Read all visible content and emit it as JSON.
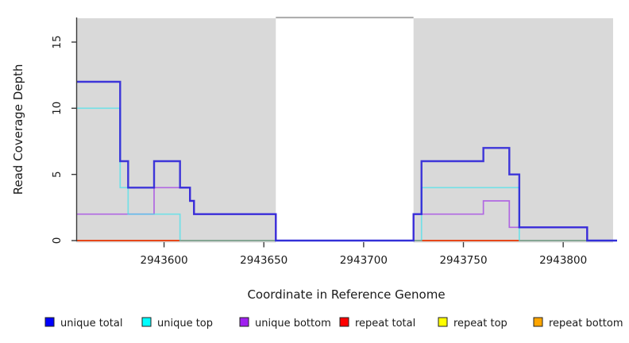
{
  "chart_data": {
    "type": "line",
    "subtype": "step-coverage",
    "title": "",
    "xlabel": "Coordinate in Reference Genome",
    "ylabel": "Read Coverage Depth",
    "xlim": [
      2943556,
      2943827
    ],
    "ylim": [
      0,
      16.8
    ],
    "x_ticks": [
      2943600,
      2943650,
      2943700,
      2943750,
      2943800
    ],
    "y_ticks": [
      0,
      5,
      10,
      15
    ],
    "grid": false,
    "legend_position": "bottom",
    "background_regions": [
      {
        "name": "covered-region-left",
        "from": 2943556,
        "to": 2943656,
        "color": "#d9d9d9"
      },
      {
        "name": "covered-region-right",
        "from": 2943725,
        "to": 2943825,
        "color": "#d9d9d9"
      }
    ],
    "gap_top_line": {
      "from": 2943656,
      "to": 2943725,
      "y_value": 16.85,
      "color": "#a9a9a9"
    },
    "series": [
      {
        "name": "unique total",
        "legend_color": "#0000ff",
        "line_color": "#2b22d8",
        "line_width": 2.4,
        "line_opacity": 0.9,
        "steps": [
          [
            2943556,
            12
          ],
          [
            2943578,
            6
          ],
          [
            2943582,
            4
          ],
          [
            2943595,
            6
          ],
          [
            2943608,
            4
          ],
          [
            2943613,
            3
          ],
          [
            2943615,
            2
          ],
          [
            2943656,
            0
          ],
          [
            2943725,
            2
          ],
          [
            2943729,
            6
          ],
          [
            2943760,
            7
          ],
          [
            2943773,
            5
          ],
          [
            2943778,
            1
          ],
          [
            2943812,
            0
          ]
        ]
      },
      {
        "name": "unique top",
        "legend_color": "#00ffff",
        "line_color": "#3ce4ee",
        "line_width": 1.7,
        "line_opacity": 0.66,
        "steps": [
          [
            2943556,
            10
          ],
          [
            2943578,
            4
          ],
          [
            2943582,
            2
          ],
          [
            2943608,
            0
          ],
          [
            2943729,
            4
          ],
          [
            2943778,
            0
          ]
        ]
      },
      {
        "name": "unique bottom",
        "legend_color": "#a020f0",
        "line_color": "#b168e2",
        "line_width": 1.7,
        "line_opacity": 1,
        "steps": [
          [
            2943556,
            2
          ],
          [
            2943595,
            4
          ],
          [
            2943613,
            3
          ],
          [
            2943615,
            2
          ],
          [
            2943656,
            0
          ],
          [
            2943725,
            2
          ],
          [
            2943760,
            3
          ],
          [
            2943773,
            1
          ],
          [
            2943812,
            0
          ]
        ]
      },
      {
        "name": "repeat total",
        "legend_color": "#ff0000",
        "line_color": "#e02020",
        "line_width": 1.5,
        "line_opacity": 1,
        "steps": [
          [
            2943556,
            0
          ]
        ]
      },
      {
        "name": "repeat top",
        "legend_color": "#ffff00",
        "line_color": "#f0e800",
        "line_width": 1.5,
        "line_opacity": 1,
        "steps": [
          [
            2943556,
            0
          ]
        ]
      },
      {
        "name": "repeat bottom",
        "legend_color": "#ffa500",
        "line_color": "#ff9e13",
        "line_width": 1.9,
        "line_opacity": 1,
        "steps": [
          [
            2943556,
            0
          ]
        ]
      }
    ],
    "axis_color": "#3a3a3a",
    "tick_label_color": "#1a1a1a"
  }
}
